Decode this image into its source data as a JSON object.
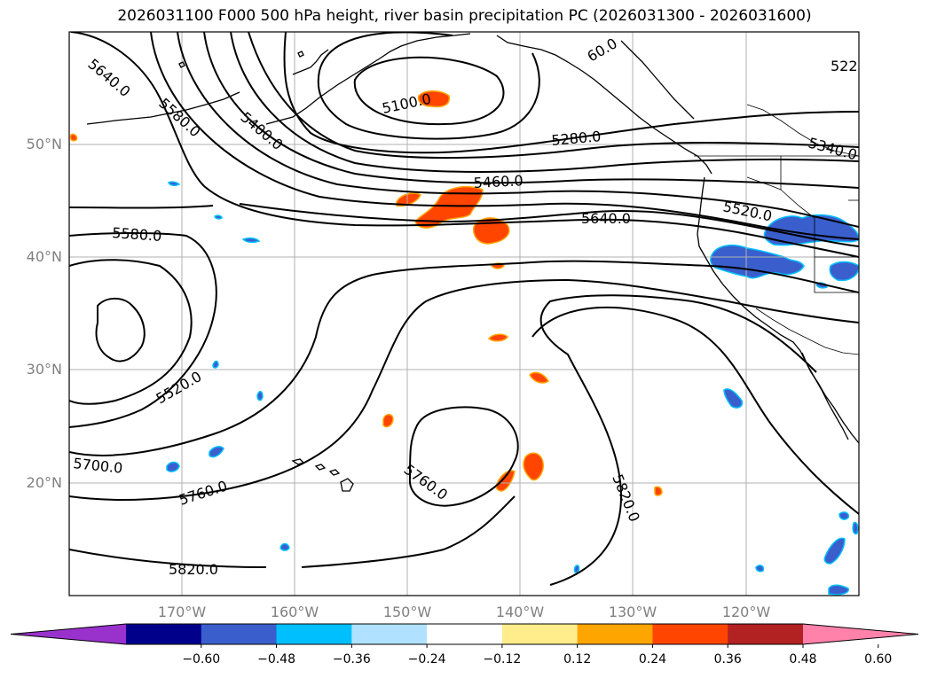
{
  "title": "2026031100 F000 500 hPa height, river basin precipitation PC (2026031300 - 2026031600)",
  "map": {
    "projection": "lat-lon",
    "lon_range": [
      -180,
      -110
    ],
    "lat_range": [
      10,
      60
    ],
    "lat_labels": [
      {
        "lat": 50,
        "text": "50°N"
      },
      {
        "lat": 40,
        "text": "40°N"
      },
      {
        "lat": 30,
        "text": "30°N"
      },
      {
        "lat": 20,
        "text": "20°N"
      }
    ],
    "lon_labels": [
      {
        "lon": -170,
        "text": "170°W"
      },
      {
        "lon": -160,
        "text": "160°W"
      },
      {
        "lon": -150,
        "text": "150°W"
      },
      {
        "lon": -140,
        "text": "140°W"
      },
      {
        "lon": -130,
        "text": "130°W"
      },
      {
        "lon": -120,
        "text": "120°W"
      }
    ],
    "contour_labels": [
      "5640.0",
      "5580.0",
      "5400.0",
      "5100.0",
      "5280.0",
      "5340.0",
      "5460.0",
      "5640.0",
      "5520.0",
      "5580.0",
      "5520.0",
      "5700.0",
      "5760.0",
      "5760.0",
      "5820.0",
      "5820.0",
      "522",
      "60.0"
    ]
  },
  "colorbar": {
    "colors": [
      "#9932cc",
      "#00008b",
      "#3a5fcd",
      "#00bfff",
      "#b0e2ff",
      "#ffffff",
      "#ffec8b",
      "#ffa500",
      "#ff4500",
      "#b22222",
      "#ff82ab"
    ],
    "ticks": [
      "−0.60",
      "−0.48",
      "−0.36",
      "−0.24",
      "−0.12",
      "0.12",
      "0.24",
      "0.36",
      "0.48",
      "0.60"
    ]
  }
}
